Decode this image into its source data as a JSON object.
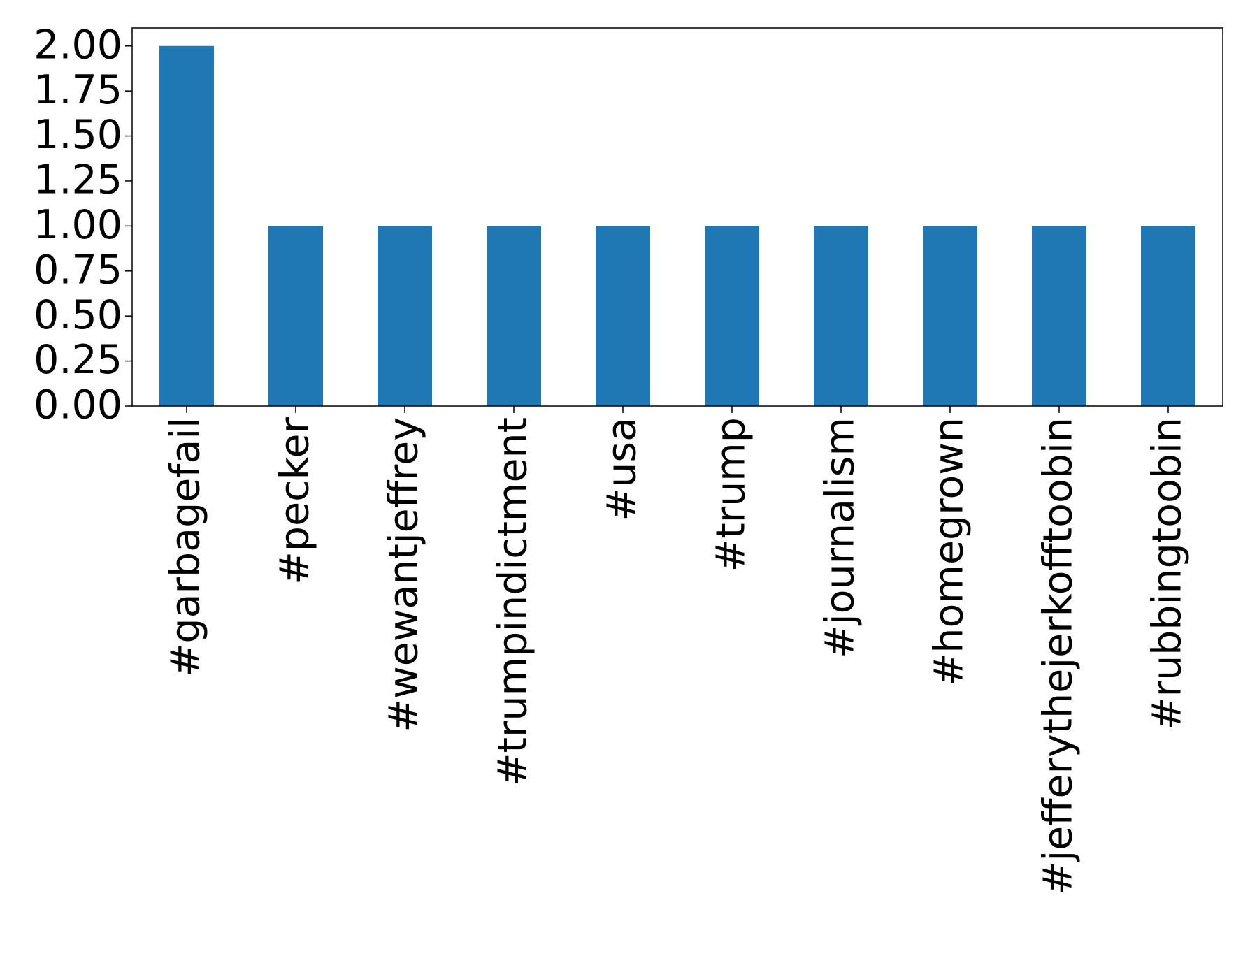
{
  "chart_data": {
    "type": "bar",
    "categories": [
      "#garbagefail",
      "#pecker",
      "#wewantjeffrey",
      "#trumpindictment",
      "#usa",
      "#trump",
      "#journalism",
      "#homegrown",
      "#jefferythejerkofftoobin",
      "#rubbingtoobin"
    ],
    "values": [
      2,
      1,
      1,
      1,
      1,
      1,
      1,
      1,
      1,
      1
    ],
    "color": "#1f77b4",
    "ylim": [
      0,
      2.1
    ],
    "yticks": [
      {
        "value": 0,
        "label": "0.00"
      },
      {
        "value": 0.25,
        "label": "0.25"
      },
      {
        "value": 0.5,
        "label": "0.50"
      },
      {
        "value": 0.75,
        "label": "0.75"
      },
      {
        "value": 1,
        "label": "1.00"
      },
      {
        "value": 1.25,
        "label": "1.25"
      },
      {
        "value": 1.5,
        "label": "1.50"
      },
      {
        "value": 1.75,
        "label": "1.75"
      },
      {
        "value": 2,
        "label": "2.00"
      }
    ],
    "grid": false
  }
}
